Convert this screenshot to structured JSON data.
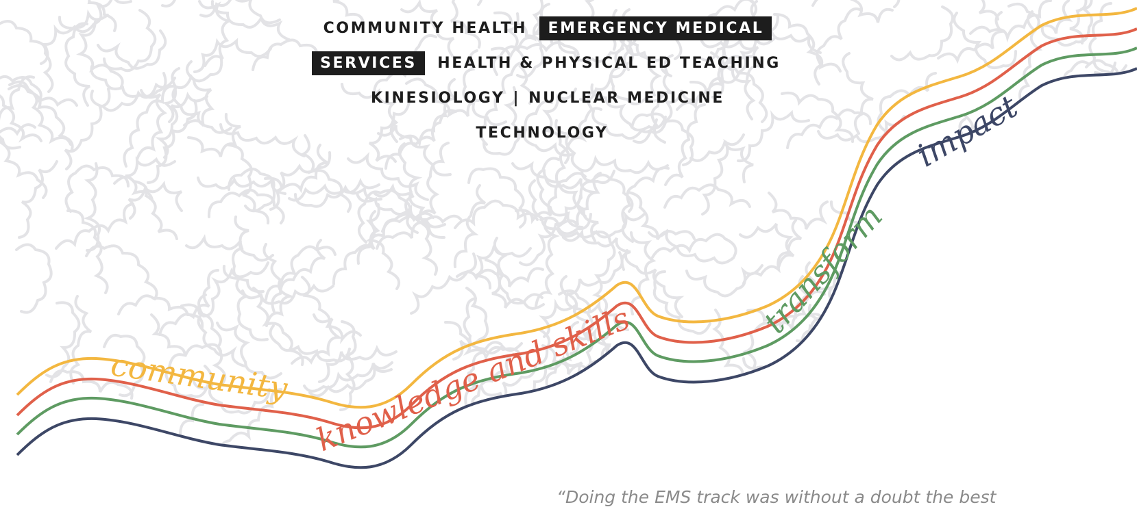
{
  "nav": {
    "programs": [
      "COMMUNITY HEALTH",
      "EMERGENCY MEDICAL SERVICES",
      "HEALTH & PHYSICAL ED TEACHING",
      "KINESIOLOGY",
      "NUCLEAR MEDICINE TECHNOLOGY"
    ],
    "separator": "|"
  },
  "illustration": {
    "words": [
      "community",
      "knowledge and skills",
      "transform",
      "impact"
    ]
  },
  "quote": "“Doing the EMS track was without a doubt the best"
}
